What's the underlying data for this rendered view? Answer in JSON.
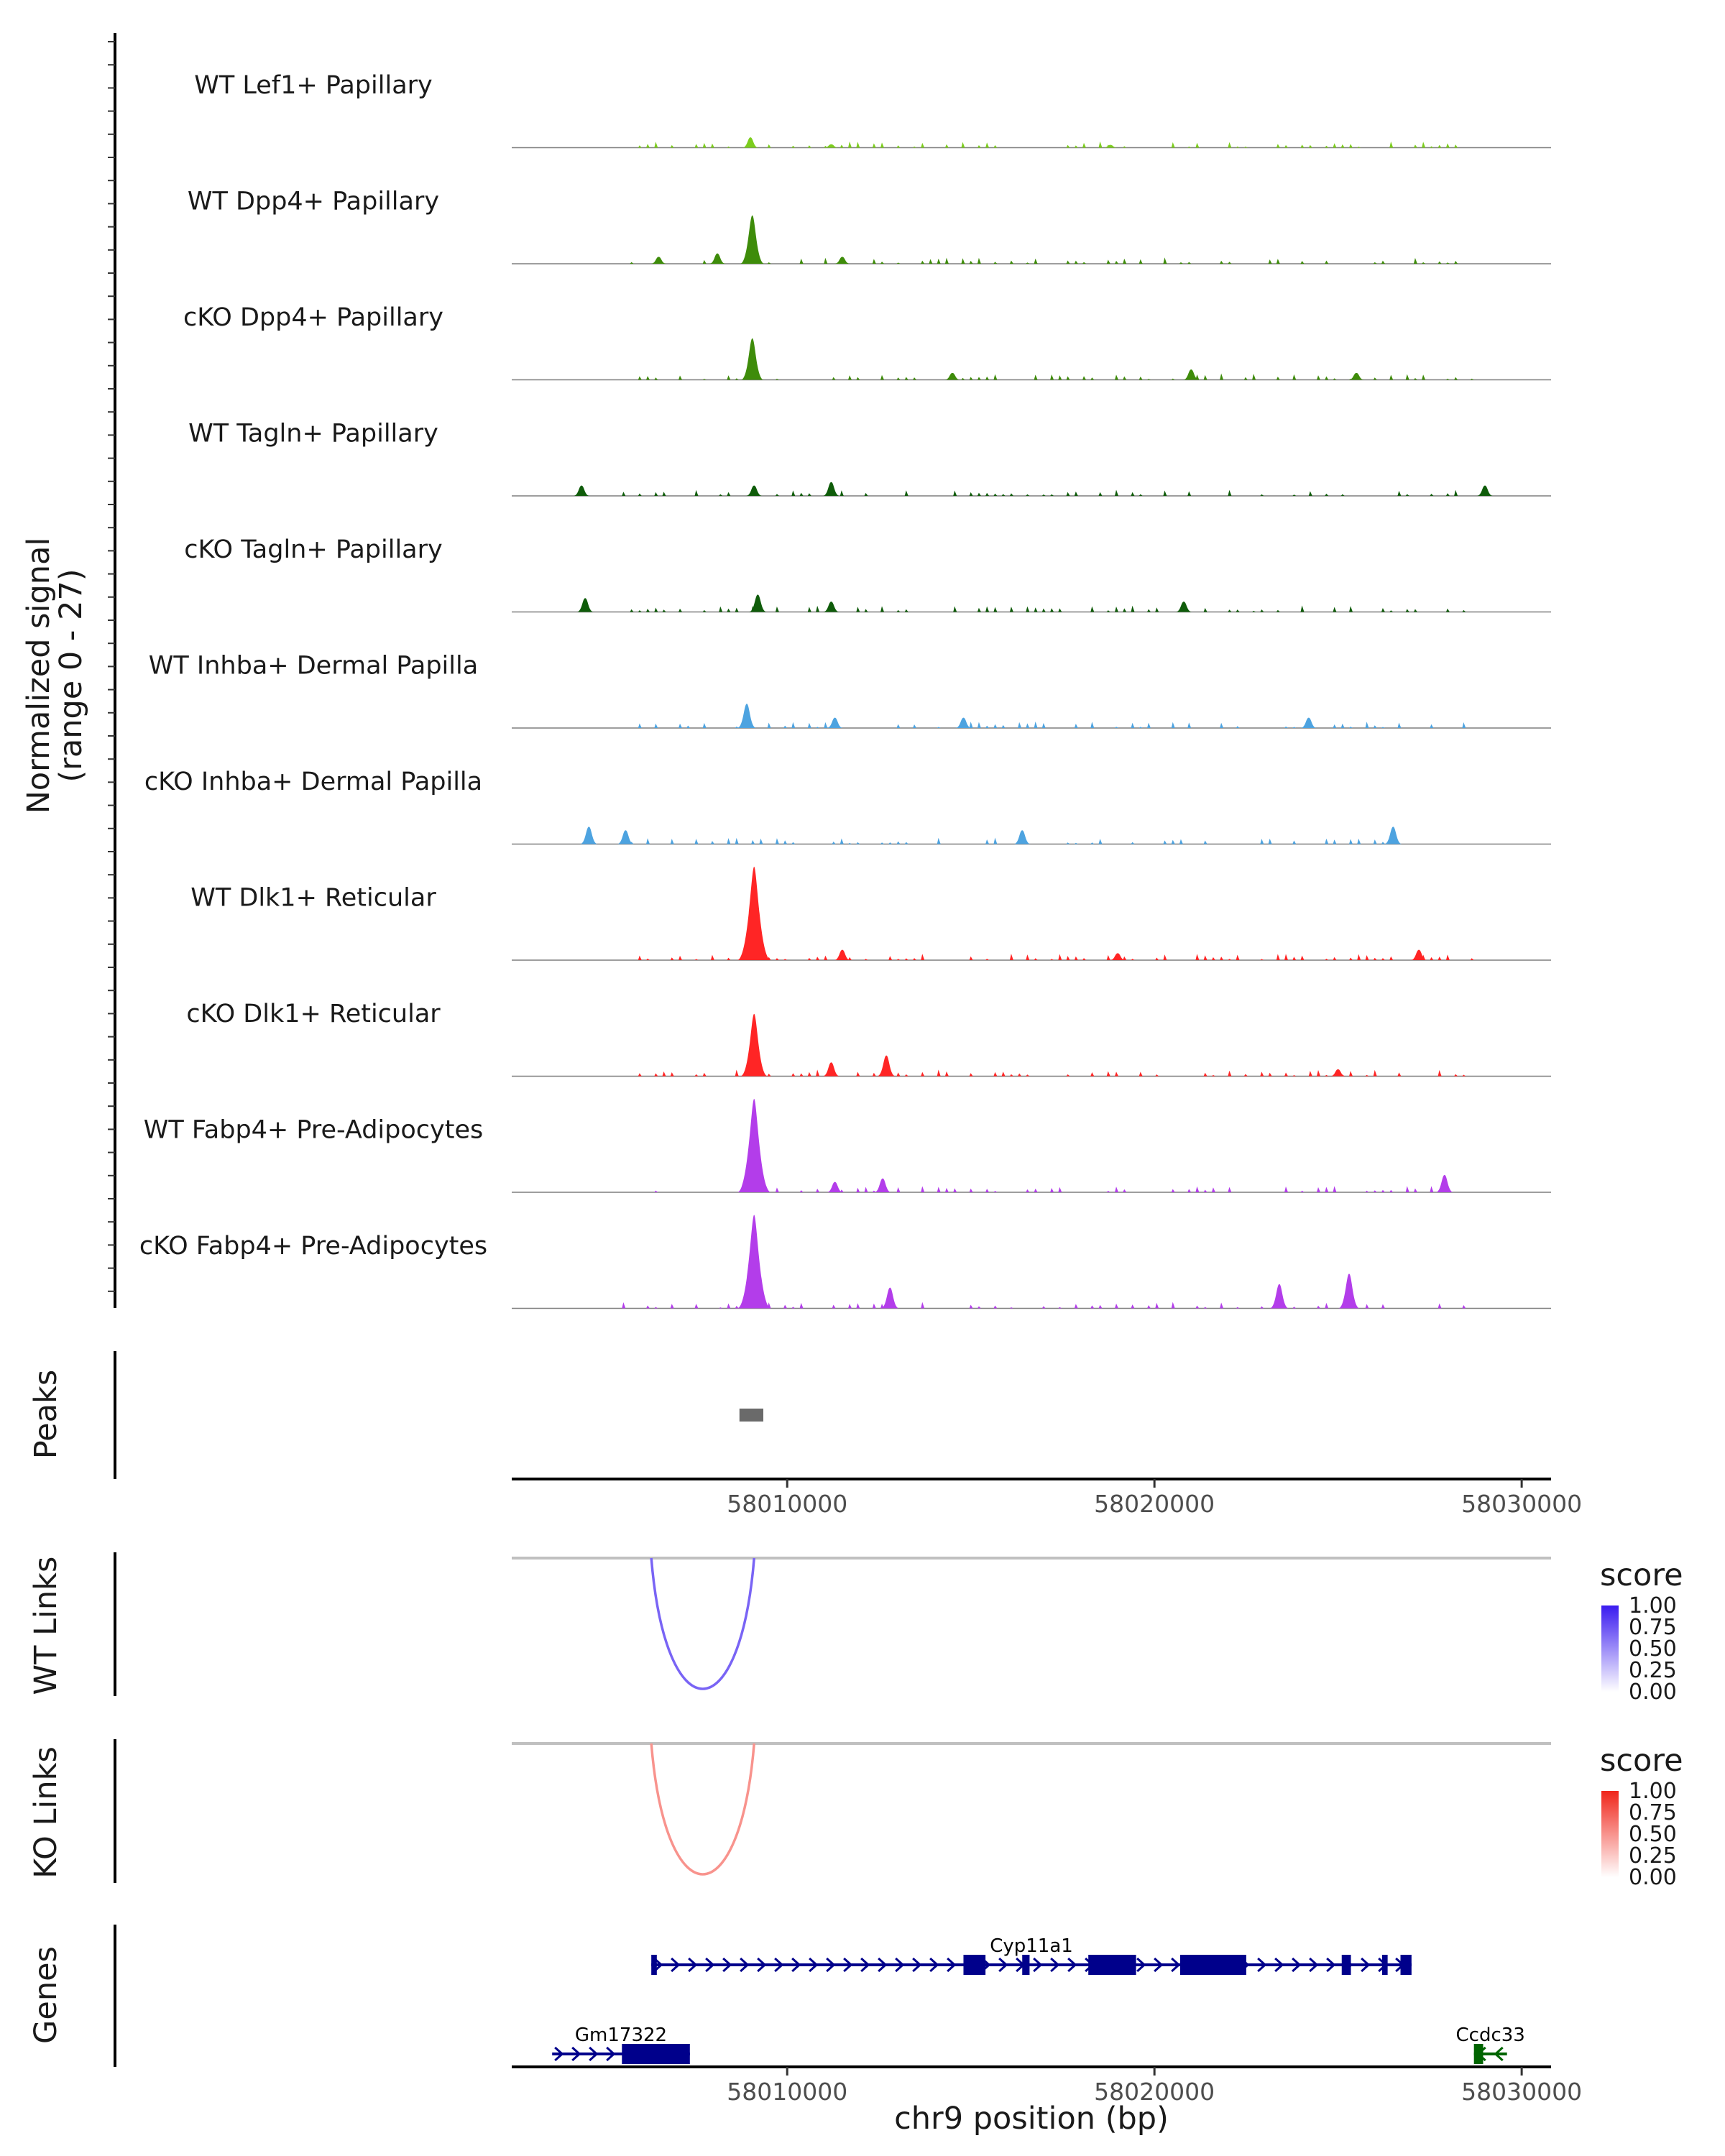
{
  "chart_data": {
    "type": "genome-coverage",
    "region": {
      "chrom": "chr9",
      "start": 58002500,
      "end": 58030800
    },
    "colors": {
      "axis": "#000000",
      "baseline": "#7f7f7f",
      "peak": "#6a6a6a",
      "link_line": "#c0c0c0",
      "gene_plus": "#00008b",
      "gene_minus": "#006400"
    },
    "coverage": {
      "ylabel": "Normalized signal",
      "ylabel_range": "(range 0 - 27)",
      "tracks": [
        {
          "name": "WT Lef1+ Papillary",
          "color": "#7ccd1e",
          "peaks": [
            [
              58009000,
              3
            ],
            [
              58011200,
              1
            ],
            [
              58018800,
              0.8
            ]
          ]
        },
        {
          "name": "WT Dpp4+ Papillary",
          "color": "#3e8c0a",
          "peaks": [
            [
              58009050,
              14
            ],
            [
              58008100,
              3
            ],
            [
              58011500,
              2
            ],
            [
              58006500,
              2
            ]
          ]
        },
        {
          "name": "cKO Dpp4+ Papillary",
          "color": "#3e8c0a",
          "peaks": [
            [
              58009050,
              12
            ],
            [
              58021000,
              3
            ],
            [
              58025500,
              2
            ],
            [
              58014500,
              2
            ]
          ]
        },
        {
          "name": "WT Tagln+ Papillary",
          "color": "#0f5c0a",
          "peaks": [
            [
              58011200,
              4
            ],
            [
              58009100,
              3
            ],
            [
              58004400,
              3
            ],
            [
              58029000,
              3
            ]
          ]
        },
        {
          "name": "cKO Tagln+ Papillary",
          "color": "#0f5c0a",
          "peaks": [
            [
              58009200,
              5
            ],
            [
              58004500,
              4
            ],
            [
              58011200,
              3
            ],
            [
              58020800,
              3
            ]
          ]
        },
        {
          "name": "WT Inhba+ Dermal Papilla",
          "color": "#4da3e0",
          "peaks": [
            [
              58008900,
              7
            ],
            [
              58011300,
              3
            ],
            [
              58014800,
              3
            ],
            [
              58024200,
              3
            ]
          ]
        },
        {
          "name": "cKO Inhba+ Dermal Papilla",
          "color": "#4da3e0",
          "peaks": [
            [
              58004600,
              5
            ],
            [
              58005600,
              4
            ],
            [
              58026500,
              5
            ],
            [
              58016400,
              4
            ]
          ]
        },
        {
          "name": "WT Dlk1+ Reticular",
          "color": "#ff2525",
          "peaks": [
            [
              58009100,
              27
            ],
            [
              58011500,
              3
            ],
            [
              58019000,
              2
            ],
            [
              58027200,
              3
            ]
          ]
        },
        {
          "name": "cKO Dlk1+ Reticular",
          "color": "#ff2525",
          "peaks": [
            [
              58009100,
              18
            ],
            [
              58012700,
              6
            ],
            [
              58011200,
              4
            ],
            [
              58025000,
              2
            ]
          ]
        },
        {
          "name": "WT Fabp4+ Pre-Adipocytes",
          "color": "#b33dea",
          "peaks": [
            [
              58009100,
              27
            ],
            [
              58012600,
              4
            ],
            [
              58027900,
              5
            ],
            [
              58011300,
              3
            ]
          ]
        },
        {
          "name": "cKO Fabp4+ Pre-Adipocytes",
          "color": "#b33dea",
          "peaks": [
            [
              58009100,
              27
            ],
            [
              58025300,
              10
            ],
            [
              58023400,
              7
            ],
            [
              58012800,
              6
            ]
          ]
        }
      ]
    },
    "peaks_track": {
      "label": "Peaks",
      "regions": [
        [
          58008700,
          58009350
        ]
      ]
    },
    "x_axis": {
      "title": "chr9 position (bp)",
      "ticks": [
        58010000,
        58020000,
        58030000
      ],
      "tick_labels": [
        "58010000",
        "58020000",
        "58030000"
      ]
    },
    "links": [
      {
        "label": "WT Links",
        "start": 58006300,
        "end": 58009100,
        "score": 0.68,
        "legend": {
          "title": "score",
          "ticks": [
            "1.00",
            "0.75",
            "0.50",
            "0.25",
            "0.00"
          ],
          "high": "#3a1bf0",
          "low": "#ffffff"
        }
      },
      {
        "label": "KO Links",
        "start": 58006300,
        "end": 58009100,
        "score": 0.5,
        "legend": {
          "title": "score",
          "ticks": [
            "1.00",
            "0.75",
            "0.50",
            "0.25",
            "0.00"
          ],
          "high": "#f0261b",
          "low": "#ffffff"
        }
      }
    ],
    "genes": {
      "label": "Genes",
      "items": [
        {
          "name": "Cyp11a1",
          "strand": "+",
          "start": 58006300,
          "end": 58027000,
          "exons": [
            [
              58006300,
              58006450
            ],
            [
              58014800,
              58015400
            ],
            [
              58016400,
              58016600
            ],
            [
              58018200,
              58019500
            ],
            [
              58020700,
              58022500
            ],
            [
              58025100,
              58025350
            ],
            [
              58026200,
              58026350
            ],
            [
              58026700,
              58027000
            ]
          ]
        },
        {
          "name": "Gm17322",
          "strand": "+",
          "start": 58003600,
          "end": 58007350,
          "exons": [
            [
              58005500,
              58007350
            ]
          ]
        },
        {
          "name": "Ccdc33",
          "strand": "-",
          "start": 58028700,
          "end": 58029600,
          "exons": [
            [
              58028700,
              58028950
            ]
          ]
        }
      ]
    }
  }
}
